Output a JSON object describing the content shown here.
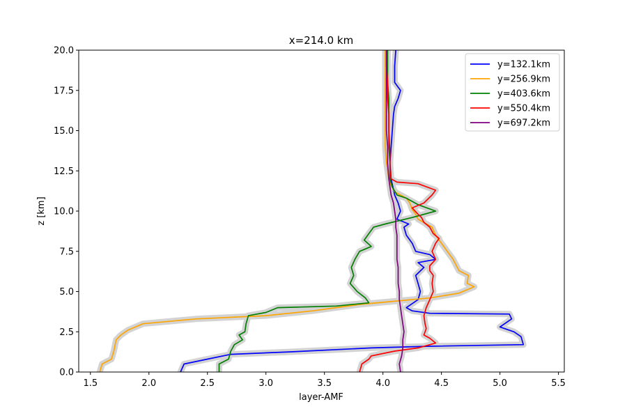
{
  "chart_data": {
    "type": "line",
    "title": "x=214.0 km",
    "xlabel": "layer-AMF",
    "ylabel": "z [km]",
    "xlim": [
      1.4,
      5.55
    ],
    "ylim": [
      0,
      20
    ],
    "xticks": [
      "1.5",
      "2.0",
      "2.5",
      "3.0",
      "3.5",
      "4.0",
      "4.5",
      "5.0",
      "5.5"
    ],
    "yticks": [
      "0.0",
      "2.5",
      "5.0",
      "7.5",
      "10.0",
      "12.5",
      "15.0",
      "17.5",
      "20.0"
    ],
    "grid": false,
    "legend_position": "top-right",
    "uncertainty_band_color": "#d3d3d3",
    "series": [
      {
        "name": "y=132.1km",
        "color": "#0000ff",
        "points": [
          [
            2.27,
            0
          ],
          [
            2.3,
            0.5
          ],
          [
            2.5,
            0.8
          ],
          [
            2.7,
            1.1
          ],
          [
            3.2,
            1.25
          ],
          [
            3.9,
            1.5
          ],
          [
            4.4,
            1.6
          ],
          [
            5.2,
            1.7
          ],
          [
            5.18,
            2.2
          ],
          [
            5.12,
            2.5
          ],
          [
            5.0,
            2.8
          ],
          [
            5.1,
            3.3
          ],
          [
            5.08,
            3.6
          ],
          [
            4.4,
            3.65
          ],
          [
            4.25,
            3.8
          ],
          [
            4.2,
            4.0
          ],
          [
            4.3,
            4.5
          ],
          [
            4.32,
            5.0
          ],
          [
            4.3,
            5.5
          ],
          [
            4.28,
            6.0
          ],
          [
            4.35,
            6.5
          ],
          [
            4.3,
            6.8
          ],
          [
            4.45,
            7.0
          ],
          [
            4.4,
            7.3
          ],
          [
            4.28,
            7.5
          ],
          [
            4.25,
            8.0
          ],
          [
            4.2,
            8.5
          ],
          [
            4.18,
            9.0
          ],
          [
            4.22,
            9.2
          ],
          [
            4.12,
            9.5
          ],
          [
            4.15,
            10.0
          ],
          [
            4.13,
            10.5
          ],
          [
            4.1,
            11.0
          ],
          [
            4.07,
            12.0
          ],
          [
            4.06,
            13.0
          ],
          [
            4.07,
            14.0
          ],
          [
            4.08,
            15.0
          ],
          [
            4.09,
            16.0
          ],
          [
            4.1,
            16.5
          ],
          [
            4.13,
            17.0
          ],
          [
            4.15,
            17.5
          ],
          [
            4.1,
            18.0
          ],
          [
            4.1,
            19.0
          ],
          [
            4.11,
            20.0
          ]
        ]
      },
      {
        "name": "y=256.9km",
        "color": "#ffa500",
        "points": [
          [
            1.58,
            0
          ],
          [
            1.6,
            0.5
          ],
          [
            1.68,
            0.8
          ],
          [
            1.7,
            1.3
          ],
          [
            1.72,
            2.0
          ],
          [
            1.76,
            2.3
          ],
          [
            1.82,
            2.6
          ],
          [
            1.95,
            3.0
          ],
          [
            2.4,
            3.3
          ],
          [
            3.0,
            3.5
          ],
          [
            3.4,
            3.8
          ],
          [
            3.6,
            4.0
          ],
          [
            3.8,
            4.2
          ],
          [
            4.1,
            4.4
          ],
          [
            4.4,
            4.6
          ],
          [
            4.65,
            4.9
          ],
          [
            4.78,
            5.3
          ],
          [
            4.72,
            5.5
          ],
          [
            4.73,
            6.0
          ],
          [
            4.65,
            6.3
          ],
          [
            4.6,
            7.0
          ],
          [
            4.55,
            7.5
          ],
          [
            4.5,
            8.0
          ],
          [
            4.45,
            8.5
          ],
          [
            4.42,
            9.0
          ],
          [
            4.3,
            9.5
          ],
          [
            4.28,
            9.8
          ],
          [
            4.25,
            10.1
          ],
          [
            4.23,
            10.5
          ],
          [
            4.2,
            10.8
          ],
          [
            4.1,
            11.2
          ],
          [
            4.07,
            11.6
          ],
          [
            4.05,
            12.0
          ],
          [
            4.03,
            13.0
          ],
          [
            4.02,
            14.0
          ],
          [
            4.02,
            15.0
          ],
          [
            4.02,
            16.0
          ],
          [
            4.02,
            17.0
          ],
          [
            4.02,
            18.0
          ],
          [
            4.02,
            19.0
          ],
          [
            4.02,
            20.0
          ]
        ]
      },
      {
        "name": "y=403.6km",
        "color": "#008000",
        "points": [
          [
            2.6,
            0
          ],
          [
            2.6,
            0.5
          ],
          [
            2.68,
            0.8
          ],
          [
            2.7,
            1.3
          ],
          [
            2.73,
            1.7
          ],
          [
            2.8,
            2.0
          ],
          [
            2.77,
            2.3
          ],
          [
            2.82,
            2.5
          ],
          [
            2.83,
            3.0
          ],
          [
            2.85,
            3.5
          ],
          [
            3.0,
            3.7
          ],
          [
            3.1,
            4.0
          ],
          [
            3.6,
            4.1
          ],
          [
            3.88,
            4.3
          ],
          [
            3.85,
            4.6
          ],
          [
            3.78,
            5.0
          ],
          [
            3.72,
            5.5
          ],
          [
            3.75,
            6.0
          ],
          [
            3.73,
            6.5
          ],
          [
            3.76,
            7.0
          ],
          [
            3.8,
            7.5
          ],
          [
            3.9,
            7.8
          ],
          [
            3.84,
            8.2
          ],
          [
            3.88,
            8.6
          ],
          [
            3.92,
            9.0
          ],
          [
            4.02,
            9.2
          ],
          [
            4.25,
            9.6
          ],
          [
            4.45,
            10.0
          ],
          [
            4.3,
            10.4
          ],
          [
            4.2,
            10.8
          ],
          [
            4.12,
            11.0
          ],
          [
            4.08,
            11.5
          ],
          [
            4.06,
            12.0
          ],
          [
            4.06,
            13.0
          ],
          [
            4.05,
            14.0
          ],
          [
            4.05,
            15.0
          ],
          [
            4.05,
            16.0
          ],
          [
            4.05,
            17.0
          ],
          [
            4.04,
            18.0
          ],
          [
            4.04,
            19.0
          ],
          [
            4.04,
            20.0
          ]
        ]
      },
      {
        "name": "y=550.4km",
        "color": "#ff0000",
        "points": [
          [
            3.8,
            0
          ],
          [
            3.82,
            0.5
          ],
          [
            3.88,
            0.8
          ],
          [
            3.9,
            1.0
          ],
          [
            4.1,
            1.3
          ],
          [
            4.3,
            1.5
          ],
          [
            4.45,
            1.8
          ],
          [
            4.4,
            2.1
          ],
          [
            4.35,
            2.3
          ],
          [
            4.37,
            2.7
          ],
          [
            4.36,
            3.0
          ],
          [
            4.35,
            3.5
          ],
          [
            4.37,
            4.0
          ],
          [
            4.4,
            4.5
          ],
          [
            4.43,
            5.0
          ],
          [
            4.42,
            5.5
          ],
          [
            4.43,
            6.0
          ],
          [
            4.4,
            6.3
          ],
          [
            4.4,
            6.6
          ],
          [
            4.45,
            7.0
          ],
          [
            4.42,
            7.5
          ],
          [
            4.45,
            8.0
          ],
          [
            4.48,
            8.3
          ],
          [
            4.43,
            8.6
          ],
          [
            4.4,
            9.0
          ],
          [
            4.35,
            9.3
          ],
          [
            4.33,
            9.6
          ],
          [
            4.3,
            9.8
          ],
          [
            4.25,
            10.2
          ],
          [
            4.35,
            10.5
          ],
          [
            4.42,
            11.0
          ],
          [
            4.45,
            11.3
          ],
          [
            4.3,
            11.7
          ],
          [
            4.12,
            11.8
          ],
          [
            4.07,
            12.0
          ],
          [
            4.06,
            12.5
          ],
          [
            4.06,
            13.5
          ],
          [
            4.05,
            15.0
          ],
          [
            4.05,
            16.0
          ],
          [
            4.04,
            17.0
          ],
          [
            4.04,
            18.0
          ],
          [
            4.03,
            19.0
          ],
          [
            4.03,
            20.0
          ]
        ]
      },
      {
        "name": "y=697.2km",
        "color": "#800080",
        "points": [
          [
            4.15,
            0
          ],
          [
            4.14,
            0.5
          ],
          [
            4.16,
            1.0
          ],
          [
            4.17,
            1.5
          ],
          [
            4.17,
            2.0
          ],
          [
            4.18,
            2.5
          ],
          [
            4.17,
            3.0
          ],
          [
            4.16,
            3.5
          ],
          [
            4.15,
            4.0
          ],
          [
            4.14,
            4.5
          ],
          [
            4.14,
            5.0
          ],
          [
            4.13,
            5.5
          ],
          [
            4.13,
            6.0
          ],
          [
            4.13,
            6.5
          ],
          [
            4.12,
            7.0
          ],
          [
            4.12,
            7.5
          ],
          [
            4.12,
            8.0
          ],
          [
            4.12,
            8.5
          ],
          [
            4.11,
            9.0
          ],
          [
            4.11,
            9.5
          ],
          [
            4.1,
            10.0
          ],
          [
            4.09,
            10.5
          ],
          [
            4.07,
            11.0
          ],
          [
            4.05,
            12.0
          ],
          [
            4.04,
            13.0
          ],
          [
            4.04,
            14.0
          ],
          [
            4.03,
            15.0
          ],
          [
            4.03,
            16.0
          ],
          [
            4.03,
            17.0
          ],
          [
            4.03,
            18.0
          ],
          [
            4.03,
            19.0
          ],
          [
            4.03,
            20.0
          ]
        ]
      }
    ]
  }
}
